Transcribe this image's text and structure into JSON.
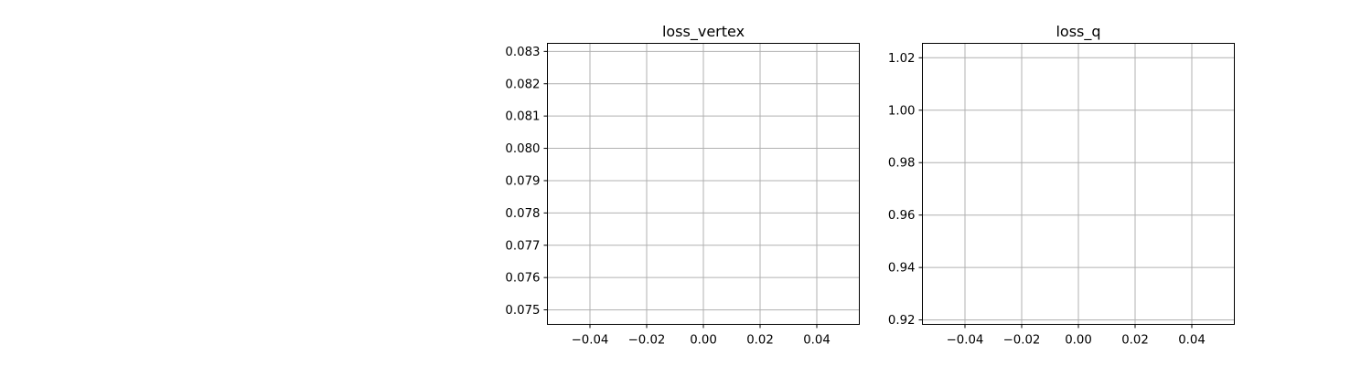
{
  "chart_data": [
    {
      "type": "line",
      "title": "loss_vertex",
      "xlabel": "",
      "ylabel": "",
      "grid": true,
      "series": [],
      "xlim": [
        -0.055,
        0.055
      ],
      "ylim": [
        0.07455,
        0.08325
      ],
      "xticks": [
        -0.04,
        -0.02,
        0.0,
        0.02,
        0.04
      ],
      "xtick_labels": [
        "−0.04",
        "−0.02",
        "0.00",
        "0.02",
        "0.04"
      ],
      "yticks": [
        0.075,
        0.076,
        0.077,
        0.078,
        0.079,
        0.08,
        0.081,
        0.082,
        0.083
      ],
      "ytick_labels": [
        "0.075",
        "0.076",
        "0.077",
        "0.078",
        "0.079",
        "0.080",
        "0.081",
        "0.082",
        "0.083"
      ]
    },
    {
      "type": "line",
      "title": "loss_q",
      "xlabel": "",
      "ylabel": "",
      "grid": true,
      "series": [],
      "xlim": [
        -0.055,
        0.055
      ],
      "ylim": [
        0.9183,
        1.0255
      ],
      "xticks": [
        -0.04,
        -0.02,
        0.0,
        0.02,
        0.04
      ],
      "xtick_labels": [
        "−0.04",
        "−0.02",
        "0.00",
        "0.02",
        "0.04"
      ],
      "yticks": [
        0.92,
        0.94,
        0.96,
        0.98,
        1.0,
        1.02
      ],
      "ytick_labels": [
        "0.92",
        "0.94",
        "0.96",
        "0.98",
        "1.00",
        "1.02"
      ]
    }
  ],
  "colors": {
    "grid": "#b0b0b0",
    "frame": "#000000",
    "text": "#000000",
    "background": "#ffffff"
  }
}
